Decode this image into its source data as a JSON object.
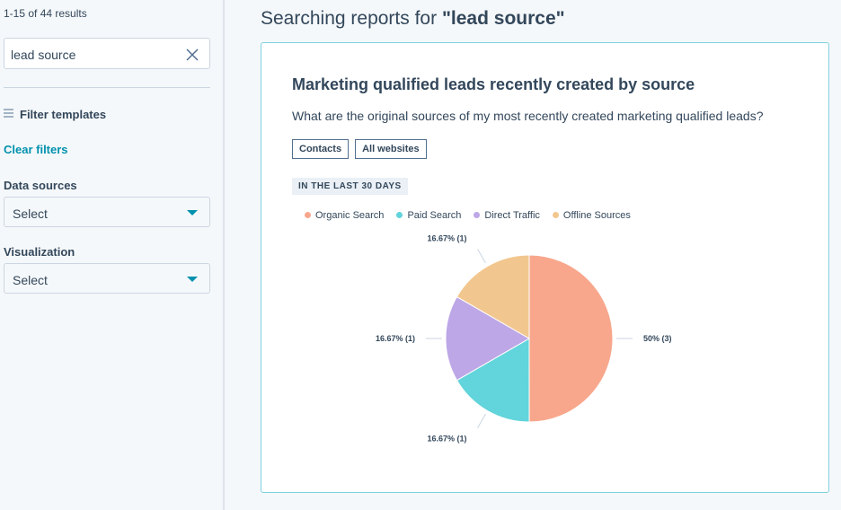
{
  "sidebar": {
    "results": "1-15 of 44 results",
    "search_value": "lead source",
    "filter_templates": "Filter templates",
    "clear_filters": "Clear filters",
    "data_sources": {
      "label": "Data sources",
      "placeholder": "Select"
    },
    "visualization": {
      "label": "Visualization",
      "placeholder": "Select"
    }
  },
  "header": {
    "prefix": "Searching reports for",
    "query": "\"lead source\""
  },
  "card": {
    "title": "Marketing qualified leads recently created by source",
    "description": "What are the original sources of my most recently created marketing qualified leads?",
    "tags": [
      "Contacts",
      "All websites"
    ],
    "date_range": "IN THE LAST 30 DAYS"
  },
  "chart_data": {
    "type": "pie",
    "categories": [
      "Organic Search",
      "Paid Search",
      "Direct Traffic",
      "Offline Sources"
    ],
    "values": [
      50,
      16.67,
      16.67,
      16.67
    ],
    "value_labels": [
      "50% (3)",
      "16.67% (1)",
      "16.67% (1)",
      "16.67% (1)"
    ],
    "colors": [
      "#f8a78c",
      "#62d4db",
      "#bda7e6",
      "#f2c78f"
    ]
  }
}
